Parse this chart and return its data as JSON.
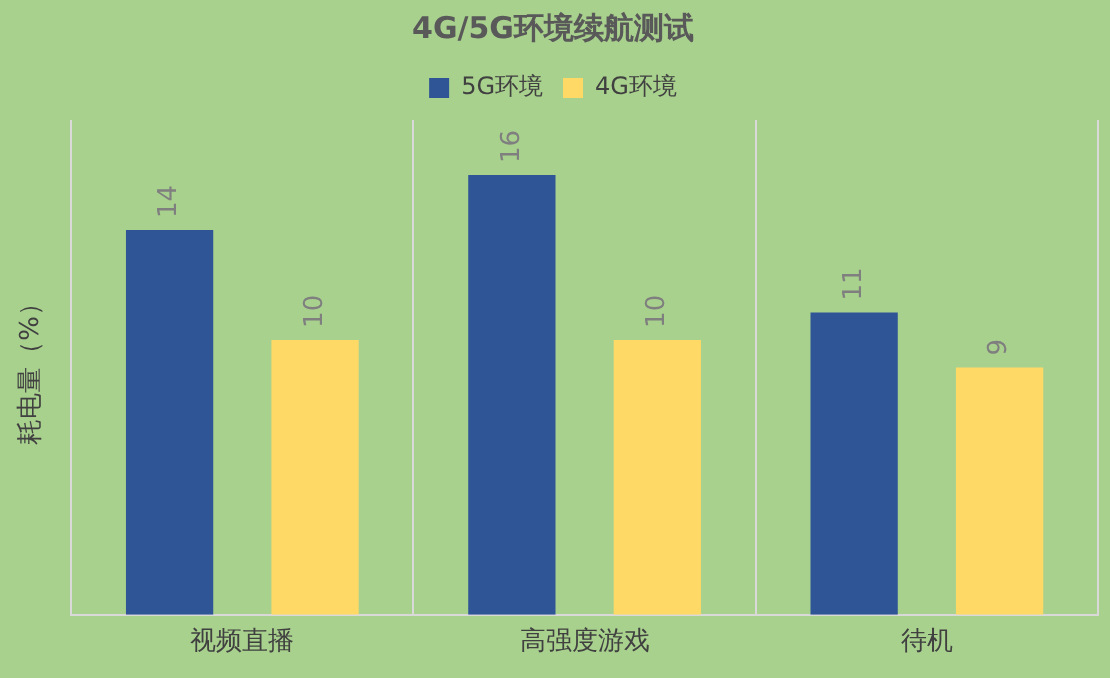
{
  "chart_data": {
    "type": "bar",
    "title": "4G/5G环境续航测试",
    "ylabel": "耗电量（%）",
    "categories": [
      "视频直播",
      "高强度游戏",
      "待机"
    ],
    "series": [
      {
        "name": "5G环境",
        "color": "#2f5597",
        "values": [
          14,
          16,
          11
        ]
      },
      {
        "name": "4G环境",
        "color": "#ffd966",
        "values": [
          10,
          10,
          9
        ]
      }
    ],
    "data_labels": true,
    "grid": "x",
    "legend": "top",
    "tick_labels": "x"
  }
}
